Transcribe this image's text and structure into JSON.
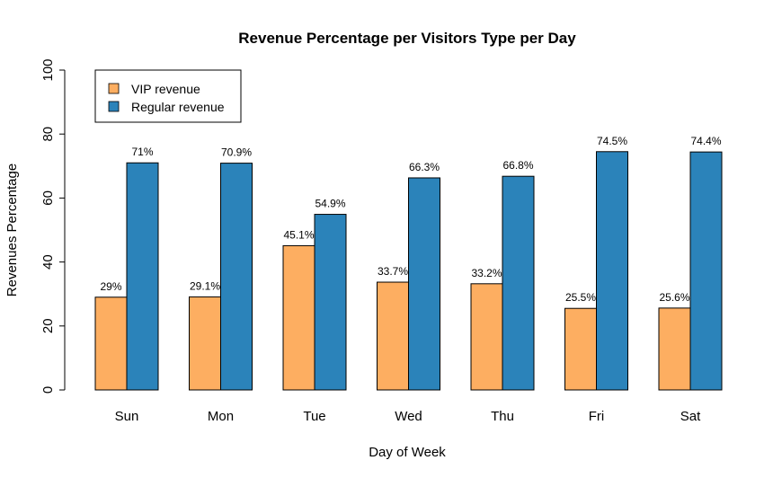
{
  "chart_data": {
    "type": "bar",
    "title": "Revenue Percentage per Visitors Type per Day",
    "xlabel": "Day of Week",
    "ylabel": "Revenues Percentage",
    "ylim": [
      0,
      100
    ],
    "yticks": [
      "0",
      "20",
      "40",
      "60",
      "80",
      "100"
    ],
    "categories": [
      "Sun",
      "Mon",
      "Tue",
      "Wed",
      "Thu",
      "Fri",
      "Sat"
    ],
    "series": [
      {
        "name": "VIP revenue",
        "color": "#FDAE61",
        "values": [
          29,
          29.1,
          45.1,
          33.7,
          33.2,
          25.5,
          25.6
        ],
        "labels": [
          "29%",
          "29.1%",
          "45.1%",
          "33.7%",
          "33.2%",
          "25.5%",
          "25.6%"
        ]
      },
      {
        "name": "Regular revenue",
        "color": "#2B83BA",
        "values": [
          71,
          70.9,
          54.9,
          66.3,
          66.8,
          74.5,
          74.4
        ],
        "labels": [
          "71%",
          "70.9%",
          "54.9%",
          "66.3%",
          "66.8%",
          "74.5%",
          "74.4%"
        ]
      }
    ],
    "legend_position": "top-left",
    "grid": false
  }
}
